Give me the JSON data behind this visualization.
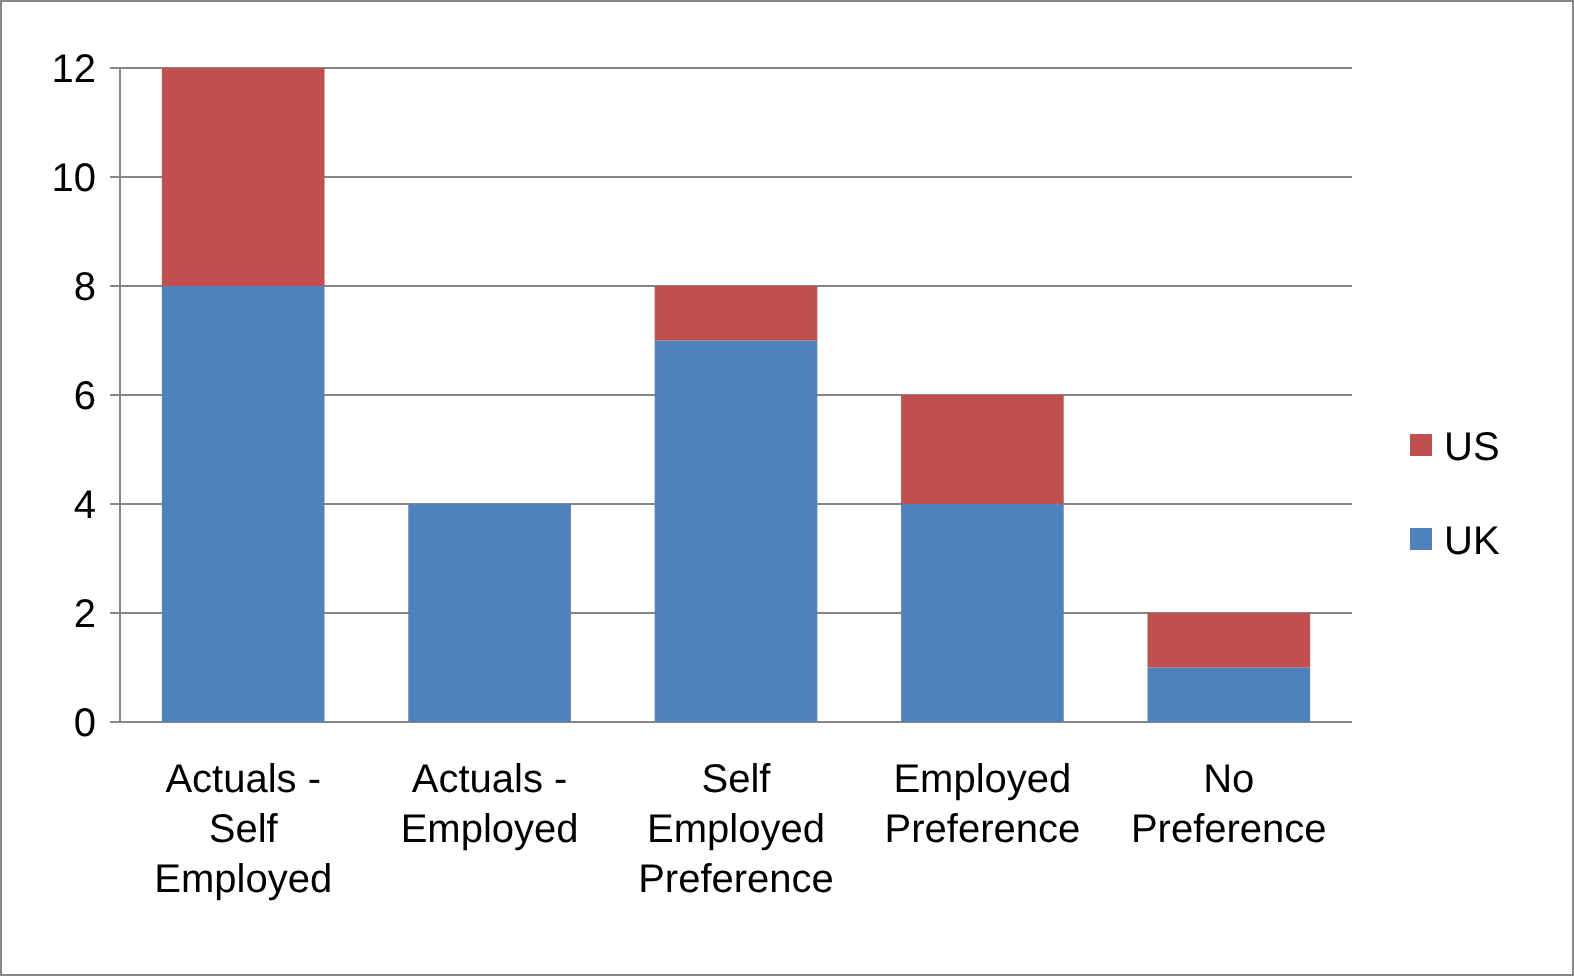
{
  "chart_data": {
    "type": "bar",
    "stacked": true,
    "categories": [
      "Actuals - Self Employed",
      "Actuals - Employed",
      "Self Employed Preference",
      "Employed Preference",
      "No Preference"
    ],
    "series": [
      {
        "name": "UK",
        "color": "#4f81bd",
        "values": [
          8,
          4,
          7,
          4,
          1
        ]
      },
      {
        "name": "US",
        "color": "#c0504d",
        "values": [
          4,
          0,
          1,
          2,
          1
        ]
      }
    ],
    "ylim": [
      0,
      12
    ],
    "yticks": [
      0,
      2,
      4,
      6,
      8,
      10,
      12
    ],
    "grid": "y",
    "legend": "right"
  }
}
